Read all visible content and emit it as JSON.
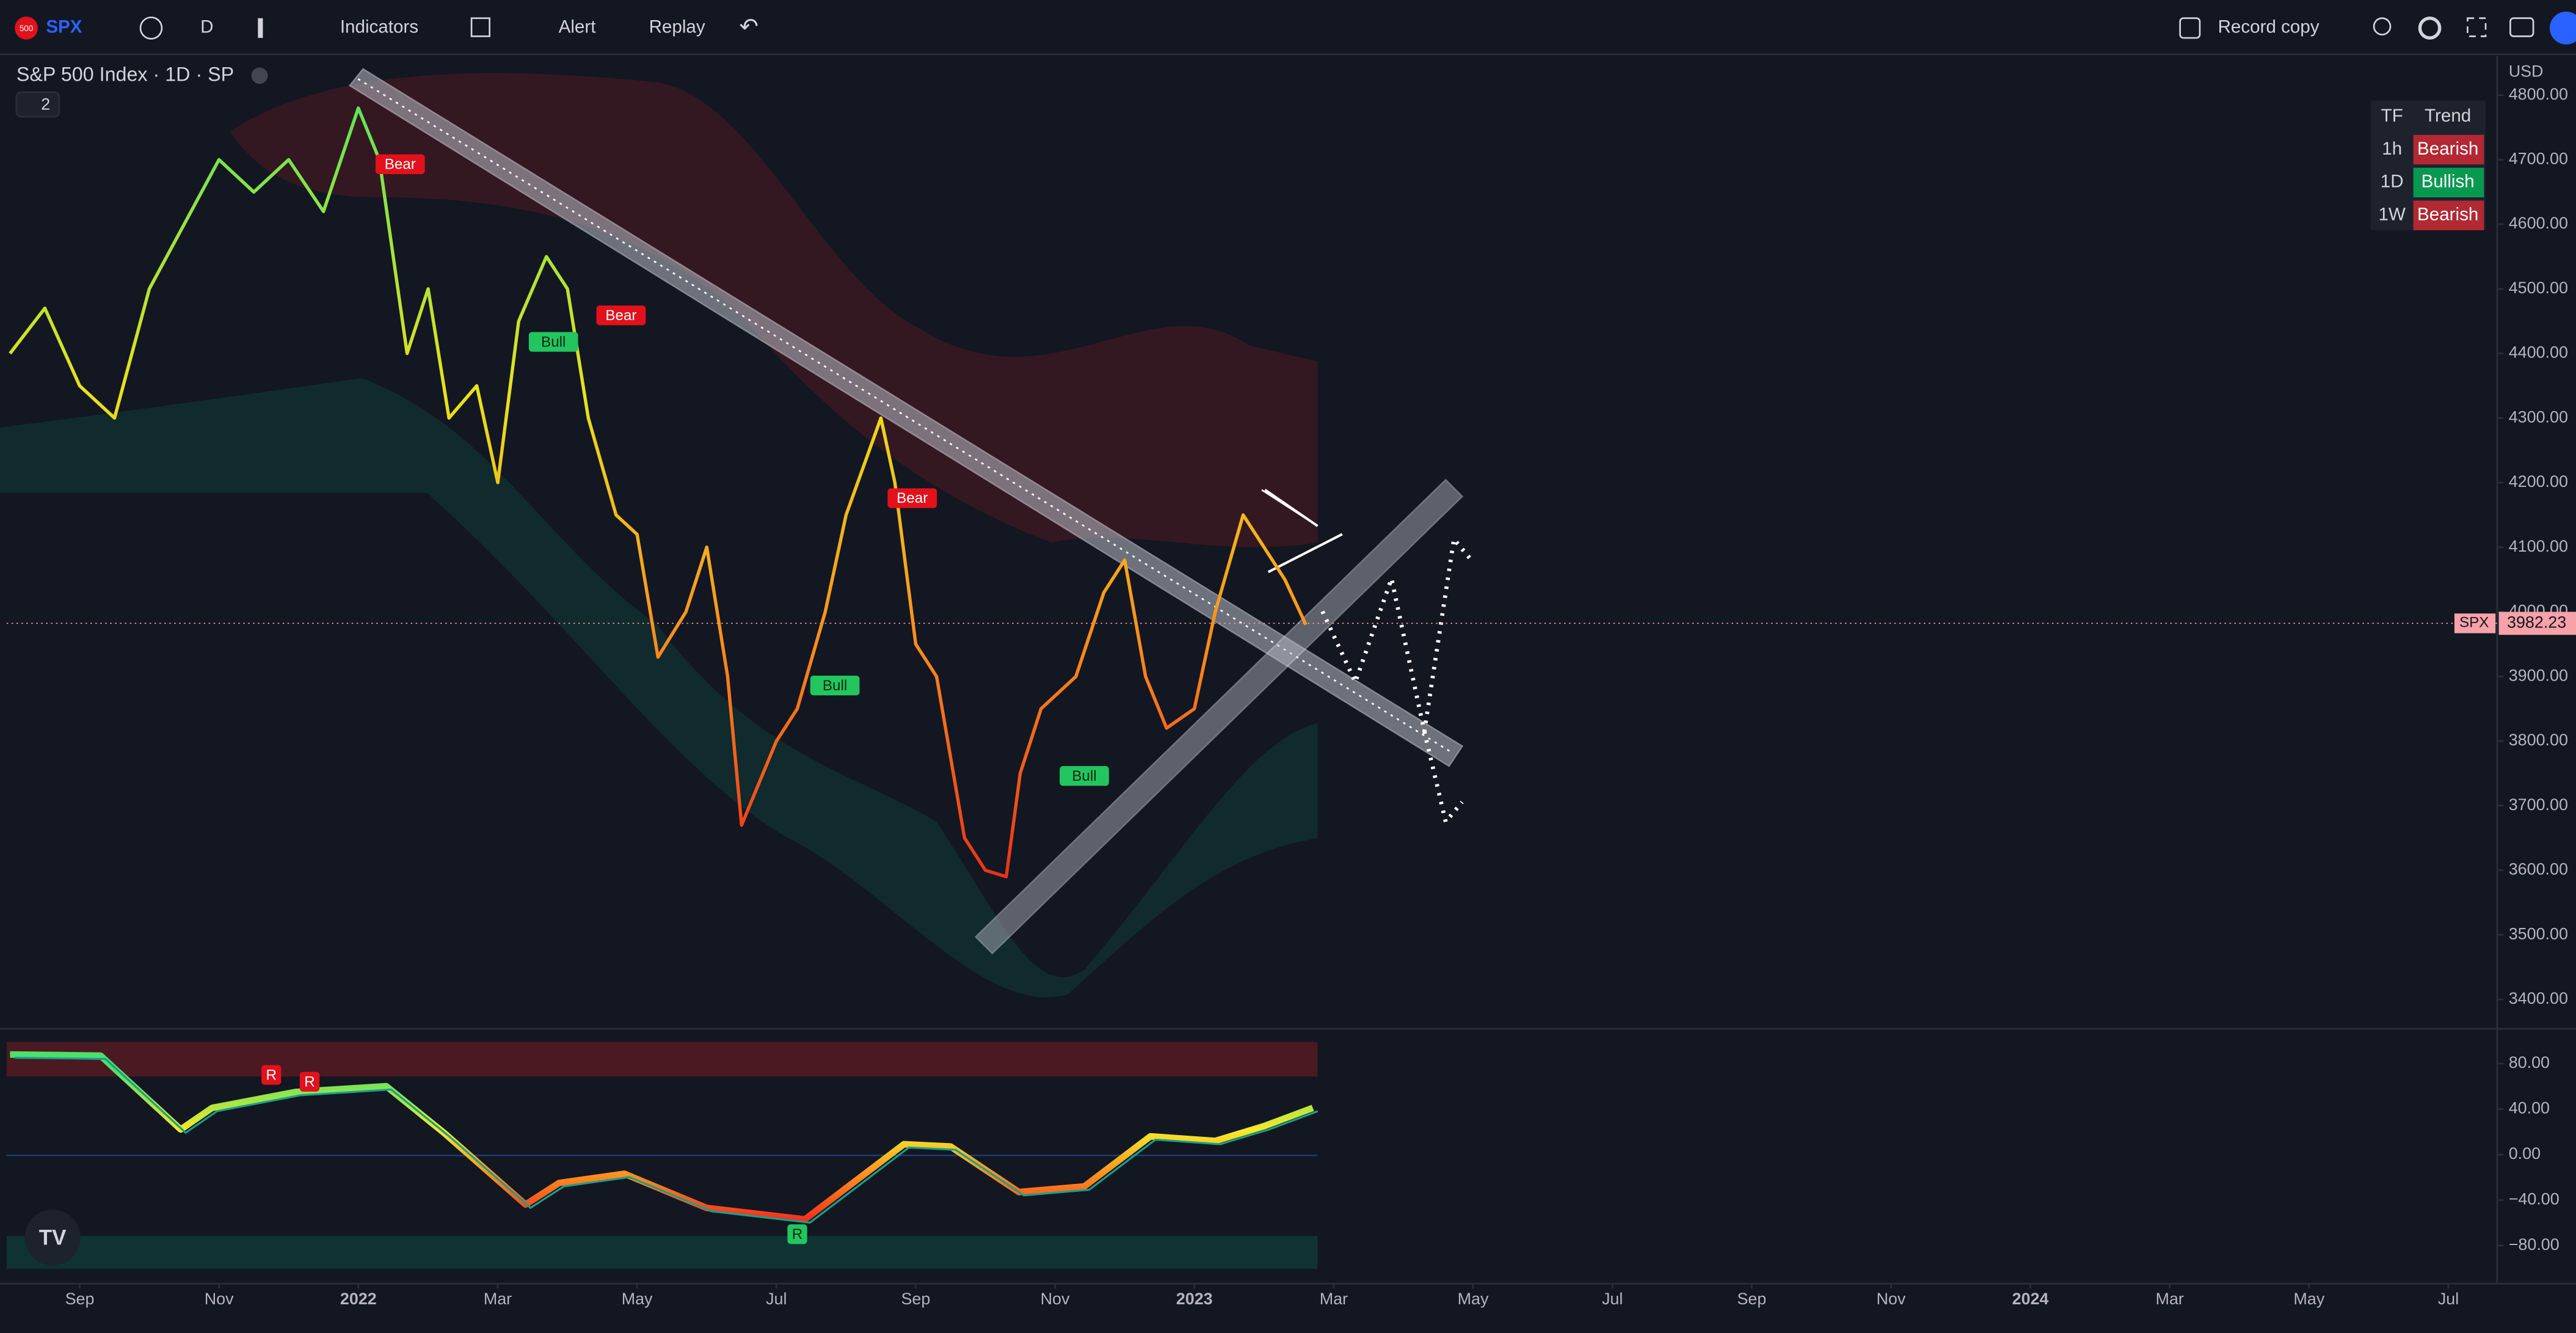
{
  "toolbar": {
    "logo": "500",
    "symbol": "SPX",
    "interval": "D",
    "indicators": "Indicators",
    "alert": "Alert",
    "replay": "Replay",
    "record": "Record copy"
  },
  "legend": {
    "title": "S&P 500 Index · 1D · SP",
    "collapsed_count": "2",
    "currency": "USD"
  },
  "trend_table": {
    "headers": [
      "TF",
      "Trend"
    ],
    "rows": [
      {
        "tf": "1h",
        "trend": "Bearish",
        "color": "#b22833"
      },
      {
        "tf": "1D",
        "trend": "Bullish",
        "color": "#089950"
      },
      {
        "tf": "1W",
        "trend": "Bearish",
        "color": "#b22833"
      }
    ]
  },
  "chart_data": [
    {
      "type": "line",
      "xlim": [
        -5.05,
        30.7
      ],
      "xticks": [
        {
          "value": -4,
          "label": "Sep"
        },
        {
          "value": -2,
          "label": "Nov"
        },
        {
          "value": 0,
          "label": "2022"
        },
        {
          "value": 2,
          "label": "Mar"
        },
        {
          "value": 4,
          "label": "May"
        },
        {
          "value": 6,
          "label": "Jul"
        },
        {
          "value": 8,
          "label": "Sep"
        },
        {
          "value": 10,
          "label": "Nov"
        },
        {
          "value": 12,
          "label": "2023"
        },
        {
          "value": 14,
          "label": "Mar"
        },
        {
          "value": 16,
          "label": "May"
        },
        {
          "value": 18,
          "label": "Jul"
        },
        {
          "value": 20,
          "label": "Sep"
        },
        {
          "value": 22,
          "label": "Nov"
        },
        {
          "value": 24,
          "label": "2024"
        },
        {
          "value": 26,
          "label": "Mar"
        },
        {
          "value": 28,
          "label": "May"
        },
        {
          "value": 30,
          "label": "Jul"
        }
      ],
      "ylim": [
        3357,
        4858
      ],
      "yticks": [
        {
          "value": 4800,
          "label": "4800.00"
        },
        {
          "value": 4700,
          "label": "4700.00"
        },
        {
          "value": 4600,
          "label": "4600.00"
        },
        {
          "value": 4500,
          "label": "4500.00"
        },
        {
          "value": 4400,
          "label": "4400.00"
        },
        {
          "value": 4300,
          "label": "4300.00"
        },
        {
          "value": 4200,
          "label": "4200.00"
        },
        {
          "value": 4100,
          "label": "4100.00"
        },
        {
          "value": 4000,
          "label": "4000.00"
        },
        {
          "value": 3900,
          "label": "3900.00"
        },
        {
          "value": 3800,
          "label": "3800.00"
        },
        {
          "value": 3700,
          "label": "3700.00"
        },
        {
          "value": 3600,
          "label": "3600.00"
        },
        {
          "value": 3500,
          "label": "3500.00"
        },
        {
          "value": 3400,
          "label": "3400.00"
        }
      ],
      "grid": false,
      "x": [
        -5,
        -4.5,
        -4,
        -3.5,
        -3,
        -2.5,
        -2,
        -1.5,
        -1,
        -0.5,
        0,
        0.3,
        0.7,
        1,
        1.3,
        1.7,
        2,
        2.3,
        2.7,
        3,
        3.3,
        3.7,
        4,
        4.3,
        4.7,
        5,
        5.3,
        5.5,
        6,
        6.3,
        6.7,
        7,
        7.5,
        7.7,
        8,
        8.3,
        8.7,
        9,
        9.3,
        9.5,
        9.8,
        10.3,
        10.7,
        11,
        11.3,
        11.6,
        12,
        12.3,
        12.7,
        13,
        13.3,
        13.6
      ],
      "series": [
        {
          "name": "SPX",
          "color": "#f5c518",
          "values": [
            4400,
            4470,
            4350,
            4300,
            4500,
            4600,
            4700,
            4650,
            4700,
            4620,
            4780,
            4700,
            4400,
            4500,
            4300,
            4350,
            4200,
            4450,
            4550,
            4500,
            4300,
            4150,
            4120,
            3930,
            4000,
            4100,
            3900,
            3670,
            3800,
            3850,
            4000,
            4150,
            4300,
            4200,
            3950,
            3900,
            3650,
            3600,
            3590,
            3750,
            3850,
            3900,
            4030,
            4080,
            3900,
            3820,
            3850,
            4000,
            4150,
            4100,
            4050,
            3980
          ]
        }
      ],
      "last_value": 3982.23,
      "last_label": "3982.23",
      "annotations": [
        {
          "text": "Bear",
          "x": 0.6,
          "y": 4693,
          "color": "#e3111b"
        },
        {
          "text": "Bull",
          "x": 2.8,
          "y": 4418,
          "color": "#22c55e"
        },
        {
          "text": "Bear",
          "x": 3.77,
          "y": 4459,
          "color": "#e3111b"
        },
        {
          "text": "Bull",
          "x": 6.84,
          "y": 3886,
          "color": "#22c55e"
        },
        {
          "text": "Bear",
          "x": 7.95,
          "y": 4176,
          "color": "#e3111b"
        },
        {
          "text": "Bull",
          "x": 10.42,
          "y": 3746,
          "color": "#22c55e"
        }
      ]
    },
    {
      "type": "line",
      "ylim": [
        -112,
        107.6
      ],
      "yticks": [
        {
          "value": 80,
          "label": "80.00"
        },
        {
          "value": 40,
          "label": "40.00"
        },
        {
          "value": 0,
          "label": "0.00"
        },
        {
          "value": -40,
          "label": "−40.00"
        },
        {
          "value": -80,
          "label": "−80.00"
        }
      ],
      "x": [
        -5,
        -3.7,
        -2.55,
        -2.1,
        -0.9,
        0.4,
        1.23,
        2.4,
        2.88,
        3.82,
        5,
        6.41,
        7.83,
        8.5,
        9.48,
        10.42,
        11.37,
        12.3,
        13,
        13.7
      ],
      "series": [
        {
          "color": "#ff8a1e",
          "values": [
            88,
            87,
            22,
            41,
            55,
            60,
            19,
            -44,
            -25,
            -17,
            -47,
            -57,
            9,
            7,
            -33,
            -28,
            16,
            12,
            25,
            41
          ]
        }
      ],
      "annotations": [
        {
          "text": "R",
          "x": -1.25,
          "y": 70,
          "color": "#e3111b"
        },
        {
          "text": "R",
          "x": -0.7,
          "y": 64,
          "color": "#e3111b"
        },
        {
          "text": "R",
          "x": 6.3,
          "y": -70,
          "color": "#22c55e"
        }
      ]
    }
  ]
}
